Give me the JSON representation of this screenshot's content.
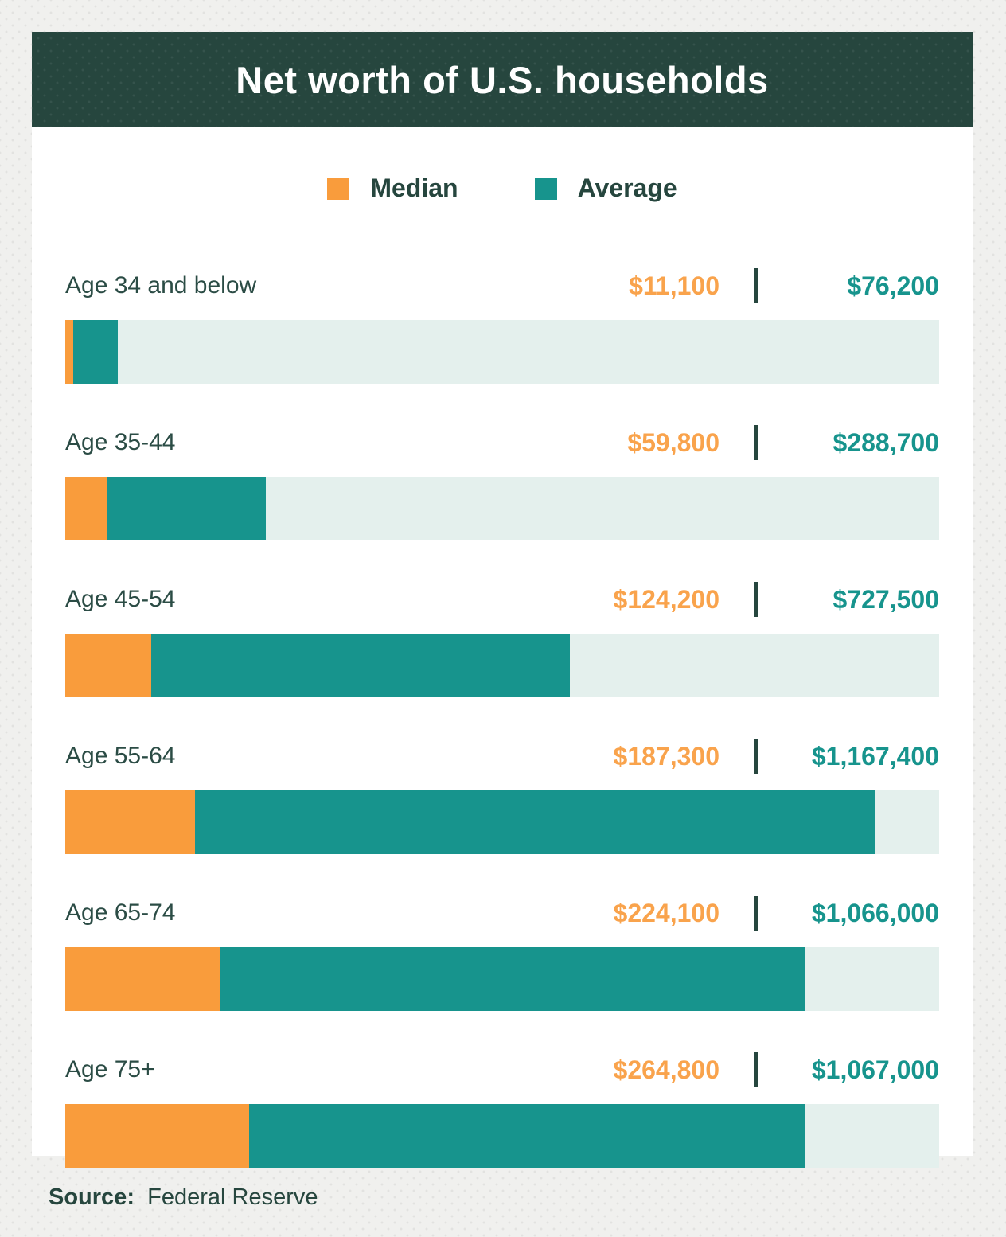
{
  "header": {
    "title": "Net worth of U.S. households"
  },
  "legend": [
    {
      "label": "Median",
      "color": "#F99C3C"
    },
    {
      "label": "Average",
      "color": "#17948D"
    }
  ],
  "chart_data": {
    "type": "bar",
    "orientation": "horizontal",
    "title": "Net worth of U.S. households",
    "legend_position": "top-center",
    "grid": false,
    "xlim": [
      0,
      1260000
    ],
    "series_names": [
      "Median",
      "Average"
    ],
    "categories": [
      "Age 34 and below",
      "Age 35-44",
      "Age 45-54",
      "Age 55-64",
      "Age 65-74",
      "Age 75+"
    ],
    "rows": [
      {
        "label": "Age 34 and below",
        "median": 11100,
        "average": 76200,
        "median_label": "$11,100",
        "average_label": "$76,200"
      },
      {
        "label": "Age 35-44",
        "median": 59800,
        "average": 288700,
        "median_label": "$59,800",
        "average_label": "$288,700"
      },
      {
        "label": "Age 45-54",
        "median": 124200,
        "average": 727500,
        "median_label": "$124,200",
        "average_label": "$727,500"
      },
      {
        "label": "Age 55-64",
        "median": 187300,
        "average": 1167400,
        "median_label": "$187,300",
        "average_label": "$1,167,400"
      },
      {
        "label": "Age 65-74",
        "median": 224100,
        "average": 1066000,
        "median_label": "$224,100",
        "average_label": "$1,066,000"
      },
      {
        "label": "Age 75+",
        "median": 264800,
        "average": 1067000,
        "median_label": "$264,800",
        "average_label": "$1,067,000"
      }
    ]
  },
  "footer": {
    "source_label": "Source:",
    "source_value": "Federal Reserve"
  },
  "colors": {
    "header_bg": "#26463E",
    "median_orange": "#F99C3C",
    "average_teal": "#17948D",
    "bar_track": "#E4F0ED",
    "text_dark": "#26463E",
    "page_bg": "#F0F0EE"
  }
}
